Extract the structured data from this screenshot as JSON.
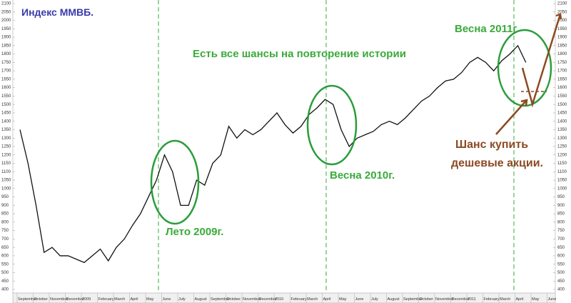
{
  "chart_data": {
    "type": "line",
    "title": "Индекс ММВБ.",
    "annotations": [
      "Есть все шансы на повторение истории",
      "Весна 2011г.",
      "Весна 2010г.",
      "Лето 2009г.",
      "Шанс купить",
      "дешевые акции."
    ],
    "categories": [
      "September",
      null,
      "October",
      null,
      "November",
      null,
      "December",
      null,
      "2009",
      null,
      "February",
      null,
      "March",
      null,
      "April",
      null,
      "May",
      null,
      "June",
      null,
      "July",
      null,
      "August",
      null,
      "September",
      null,
      "October",
      null,
      "November",
      null,
      "December",
      null,
      "2010",
      null,
      "February",
      null,
      "March",
      null,
      "April",
      null,
      "May",
      null,
      "June",
      null,
      "July",
      null,
      "August",
      null,
      "September",
      null,
      "October",
      null,
      "November",
      null,
      "December",
      null,
      "2011",
      null,
      "February",
      null,
      "March",
      null,
      "April",
      null,
      "May",
      null,
      "June",
      null
    ],
    "values": [
      1350,
      1150,
      900,
      620,
      650,
      600,
      600,
      580,
      560,
      600,
      640,
      570,
      650,
      700,
      780,
      850,
      950,
      1050,
      1200,
      1100,
      900,
      900,
      1050,
      1020,
      1150,
      1200,
      1370,
      1300,
      1350,
      1320,
      1350,
      1400,
      1450,
      1380,
      1330,
      1370,
      1440,
      1480,
      1530,
      1500,
      1350,
      1250,
      1300,
      1320,
      1340,
      1380,
      1400,
      1380,
      1420,
      1470,
      1520,
      1550,
      1600,
      1640,
      1650,
      1690,
      1750,
      1780,
      1750,
      1700,
      1760,
      1800,
      1850,
      1750,
      null,
      null,
      null,
      null
    ],
    "color": "#111111",
    "ylim": [
      400,
      2100
    ],
    "yticks": [
      400,
      450,
      500,
      550,
      600,
      650,
      700,
      750,
      800,
      850,
      900,
      950,
      1000,
      1050,
      1100,
      1150,
      1200,
      1250,
      1300,
      1350,
      1400,
      1450,
      1500,
      1550,
      1600,
      1650,
      1700,
      1750,
      1800,
      1850,
      1900,
      1950,
      2000,
      2050,
      2100
    ]
  }
}
